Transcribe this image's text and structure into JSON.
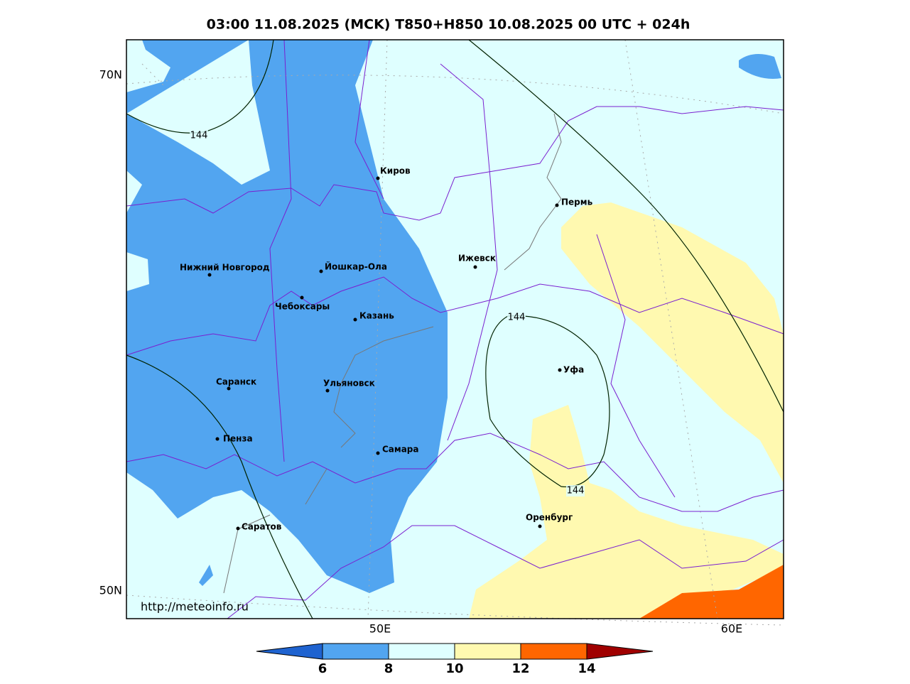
{
  "title": "03:00 11.08.2025 (MCK) T850+H850 10.08.2025 00 UTC + 024h",
  "lat_labels": [
    "70N",
    "50N"
  ],
  "lon_labels": [
    "50E",
    "60E"
  ],
  "cities": [
    "Киров",
    "Пермь",
    "Нижний Новгород",
    "Йошкар-Ола",
    "Ижевск",
    "Чебоксары",
    "Казань",
    "Уфа",
    "Саранск",
    "Ульяновск",
    "Пенза",
    "Самара",
    "Оренбург",
    "Саратов"
  ],
  "contour_labels": [
    144,
    144,
    144
  ],
  "url": "http://meteoinfo.ru",
  "colorbar": {
    "ticks": [
      6,
      8,
      10,
      12,
      14
    ],
    "colors": [
      "#1f63d0",
      "#52a5f0",
      "#dfffff",
      "#fff9b0",
      "#ff6600",
      "#a00000"
    ]
  }
}
